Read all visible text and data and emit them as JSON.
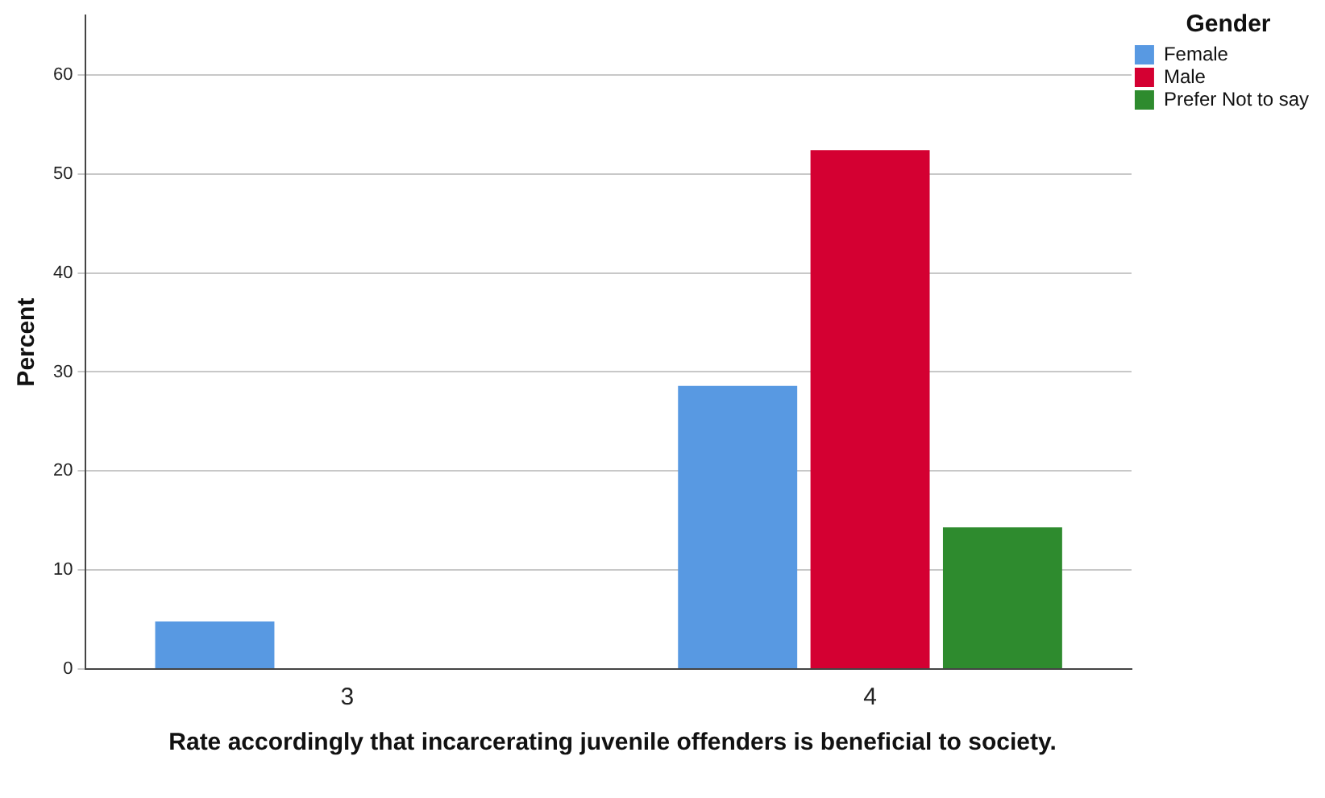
{
  "chart_data": {
    "type": "bar",
    "xlabel": "Rate accordingly that incarcerating juvenile offenders is beneficial to society.",
    "ylabel": "Percent",
    "legend_title": "Gender",
    "categories": [
      "3",
      "4"
    ],
    "series": [
      {
        "name": "Female",
        "color": "#5899e2",
        "values": [
          4.8,
          28.6
        ]
      },
      {
        "name": "Male",
        "color": "#d40032",
        "values": [
          null,
          52.4
        ]
      },
      {
        "name": "Prefer Not to say",
        "color": "#2e8b2e",
        "values": [
          null,
          14.3
        ]
      }
    ],
    "ylim": [
      0,
      66
    ],
    "yticks": [
      0,
      10,
      20,
      30,
      40,
      50,
      60
    ],
    "grid": "y",
    "legend": "top right"
  }
}
